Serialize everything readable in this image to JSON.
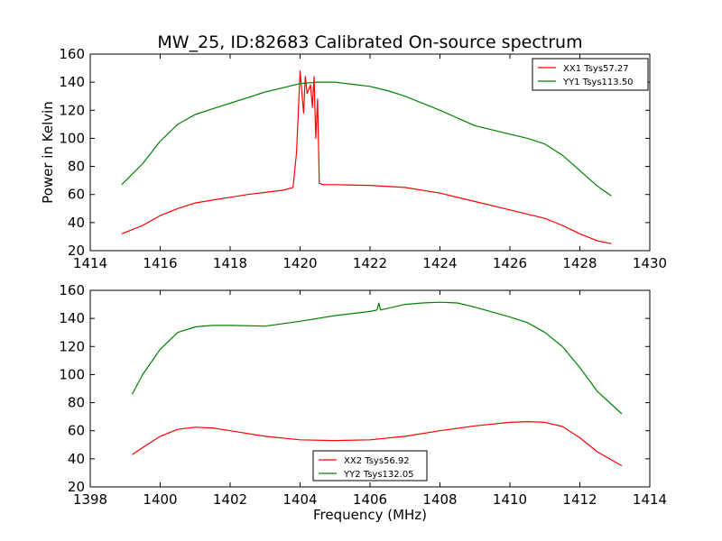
{
  "chart_data": [
    {
      "type": "line",
      "title": "MW_25, ID:82683 Calibrated On-source spectrum",
      "xlabel": "",
      "ylabel": "Power in Kelvin",
      "xlim": [
        1414,
        1430
      ],
      "ylim": [
        20,
        160
      ],
      "xticks": [
        1414,
        1416,
        1418,
        1420,
        1422,
        1424,
        1426,
        1428,
        1430
      ],
      "yticks": [
        20,
        40,
        60,
        80,
        100,
        120,
        140,
        160
      ],
      "xtick_labels": [
        "1414",
        "1416",
        "1418",
        "1420",
        "1422",
        "1424",
        "1426",
        "1428",
        "1430"
      ],
      "ytick_labels": [
        "20",
        "40",
        "60",
        "80",
        "100",
        "120",
        "140",
        "160"
      ],
      "grid": false,
      "legend": "top-right",
      "series": [
        {
          "name": "XX1 Tsys57.27",
          "color": "#ff0000",
          "x": [
            1414.9,
            1415.5,
            1416.0,
            1416.5,
            1417.0,
            1417.5,
            1418.0,
            1418.5,
            1419.0,
            1419.5,
            1419.8,
            1419.9,
            1420.0,
            1420.1,
            1420.15,
            1420.2,
            1420.3,
            1420.35,
            1420.4,
            1420.45,
            1420.5,
            1420.55,
            1420.6,
            1420.65,
            1421.0,
            1422.0,
            1423.0,
            1424.0,
            1425.0,
            1426.0,
            1427.0,
            1427.5,
            1428.0,
            1428.5,
            1428.9
          ],
          "y": [
            32,
            38,
            45,
            50,
            54,
            56,
            58,
            60,
            61.5,
            63,
            65,
            90,
            148,
            118,
            144,
            132,
            138,
            122,
            144,
            100,
            128,
            68,
            67.5,
            67,
            67,
            66.5,
            65,
            61,
            55,
            49,
            43,
            38,
            32,
            27,
            25
          ]
        },
        {
          "name": "YY1 Tsys113.50",
          "color": "#008000",
          "x": [
            1414.9,
            1415.5,
            1416.0,
            1416.5,
            1417.0,
            1417.5,
            1418.0,
            1418.5,
            1419.0,
            1419.5,
            1420.0,
            1420.5,
            1421.0,
            1421.5,
            1422.0,
            1422.5,
            1423.0,
            1424.0,
            1425.0,
            1426.0,
            1426.5,
            1427.0,
            1427.5,
            1428.0,
            1428.5,
            1428.9
          ],
          "y": [
            67,
            82,
            98,
            110,
            117,
            121,
            125,
            129,
            133,
            136,
            139,
            140,
            140,
            138.5,
            137,
            134,
            130,
            120,
            109,
            103,
            100,
            96,
            88,
            77,
            66,
            59
          ]
        }
      ]
    },
    {
      "type": "line",
      "title": "",
      "xlabel": "Frequency (MHz)",
      "ylabel": "",
      "xlim": [
        1398,
        1414
      ],
      "ylim": [
        20,
        160
      ],
      "xticks": [
        1398,
        1400,
        1402,
        1404,
        1406,
        1408,
        1410,
        1412,
        1414
      ],
      "yticks": [
        20,
        40,
        60,
        80,
        100,
        120,
        140,
        160
      ],
      "xtick_labels": [
        "1398",
        "1400",
        "1402",
        "1404",
        "1406",
        "1408",
        "1410",
        "1412",
        "1414"
      ],
      "ytick_labels": [
        "20",
        "40",
        "60",
        "80",
        "100",
        "120",
        "140",
        "160"
      ],
      "grid": false,
      "legend": "bottom-center",
      "series": [
        {
          "name": "XX2 Tsys56.92",
          "color": "#ff0000",
          "x": [
            1399.2,
            1399.5,
            1400.0,
            1400.5,
            1401.0,
            1401.5,
            1402.0,
            1403.0,
            1404.0,
            1405.0,
            1406.0,
            1407.0,
            1408.0,
            1409.0,
            1410.0,
            1410.5,
            1411.0,
            1411.5,
            1412.0,
            1412.5,
            1413.2
          ],
          "y": [
            43,
            48,
            56,
            61,
            62.5,
            62,
            60,
            56,
            53.5,
            53,
            53.5,
            56,
            60,
            63.5,
            66,
            66.5,
            66,
            63,
            55,
            45,
            35
          ]
        },
        {
          "name": "YY2 Tsys132.05",
          "color": "#008000",
          "x": [
            1399.2,
            1399.5,
            1400.0,
            1400.5,
            1401.0,
            1401.5,
            1402.0,
            1403.0,
            1404.0,
            1405.0,
            1406.0,
            1406.2,
            1406.25,
            1406.3,
            1407.0,
            1407.5,
            1408.0,
            1408.5,
            1409.0,
            1410.0,
            1410.5,
            1411.0,
            1411.5,
            1412.0,
            1412.5,
            1413.2
          ],
          "y": [
            86,
            100,
            118,
            130,
            134,
            135,
            135,
            134.5,
            138,
            142,
            145,
            146,
            151,
            146,
            150,
            151,
            151.5,
            151,
            148,
            141,
            137,
            130,
            120,
            105,
            88,
            72
          ]
        }
      ]
    }
  ]
}
